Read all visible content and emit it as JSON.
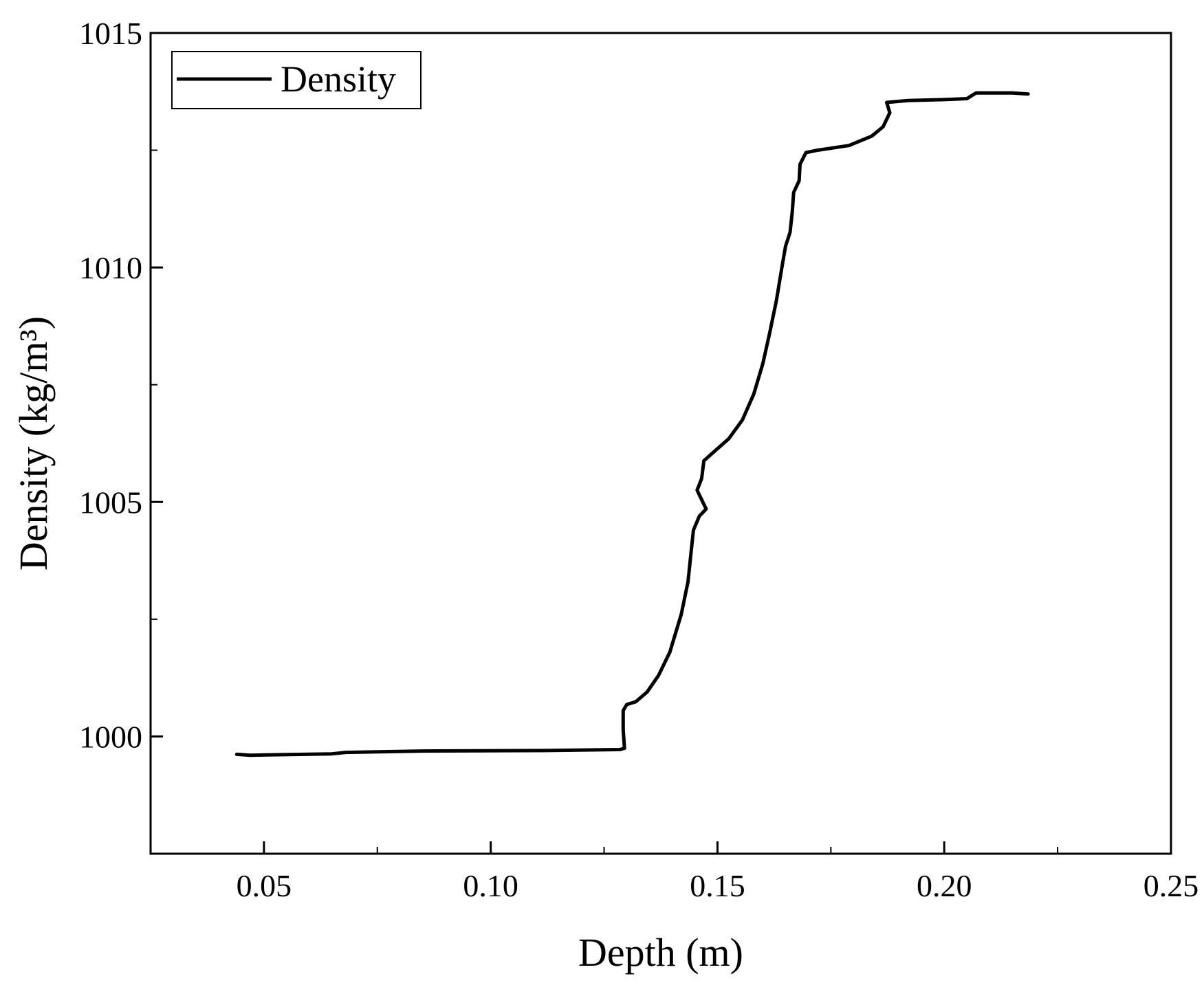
{
  "chart_data": {
    "type": "line",
    "xlabel": "Depth (m)",
    "ylabel": "Density (kg/m³)",
    "xlim": [
      0.025,
      0.25
    ],
    "ylim": [
      997.5,
      1015
    ],
    "x_ticks": [
      "0.05",
      "0.10",
      "0.15",
      "0.20",
      "0.25"
    ],
    "x_tick_values": [
      0.05,
      0.1,
      0.15,
      0.2,
      0.25
    ],
    "x_minor_ticks": [
      0.075,
      0.125,
      0.175,
      0.225
    ],
    "y_ticks": [
      "1000",
      "1005",
      "1010",
      "1015"
    ],
    "y_tick_values": [
      1000,
      1005,
      1010,
      1015
    ],
    "y_minor_ticks": [
      1002.5,
      1007.5,
      1012.5
    ],
    "legend": {
      "position": "top-left",
      "entries": [
        "Density"
      ]
    },
    "grid": false,
    "series": [
      {
        "name": "Density",
        "color": "#000000",
        "points": [
          [
            0.044,
            999.62
          ],
          [
            0.047,
            999.6
          ],
          [
            0.065,
            999.63
          ],
          [
            0.068,
            999.66
          ],
          [
            0.085,
            999.69
          ],
          [
            0.112,
            999.7
          ],
          [
            0.1285,
            999.72
          ],
          [
            0.1295,
            999.75
          ],
          [
            0.1292,
            1000.15
          ],
          [
            0.1292,
            1000.55
          ],
          [
            0.13,
            1000.68
          ],
          [
            0.132,
            1000.74
          ],
          [
            0.1345,
            1000.95
          ],
          [
            0.137,
            1001.3
          ],
          [
            0.1395,
            1001.8
          ],
          [
            0.142,
            1002.6
          ],
          [
            0.1435,
            1003.3
          ],
          [
            0.1442,
            1003.95
          ],
          [
            0.1447,
            1004.4
          ],
          [
            0.146,
            1004.7
          ],
          [
            0.1475,
            1004.85
          ],
          [
            0.1465,
            1005.05
          ],
          [
            0.1455,
            1005.25
          ],
          [
            0.1465,
            1005.5
          ],
          [
            0.147,
            1005.88
          ],
          [
            0.149,
            1006.05
          ],
          [
            0.1525,
            1006.35
          ],
          [
            0.1555,
            1006.75
          ],
          [
            0.158,
            1007.3
          ],
          [
            0.16,
            1007.95
          ],
          [
            0.1615,
            1008.6
          ],
          [
            0.163,
            1009.3
          ],
          [
            0.1642,
            1010.0
          ],
          [
            0.165,
            1010.45
          ],
          [
            0.166,
            1010.75
          ],
          [
            0.1665,
            1011.2
          ],
          [
            0.1668,
            1011.6
          ],
          [
            0.168,
            1011.85
          ],
          [
            0.1682,
            1012.2
          ],
          [
            0.1695,
            1012.45
          ],
          [
            0.172,
            1012.5
          ],
          [
            0.179,
            1012.6
          ],
          [
            0.184,
            1012.8
          ],
          [
            0.1865,
            1013.0
          ],
          [
            0.188,
            1013.3
          ],
          [
            0.1873,
            1013.52
          ],
          [
            0.192,
            1013.56
          ],
          [
            0.2,
            1013.58
          ],
          [
            0.205,
            1013.6
          ],
          [
            0.207,
            1013.72
          ],
          [
            0.215,
            1013.72
          ],
          [
            0.2185,
            1013.7
          ]
        ]
      }
    ]
  }
}
